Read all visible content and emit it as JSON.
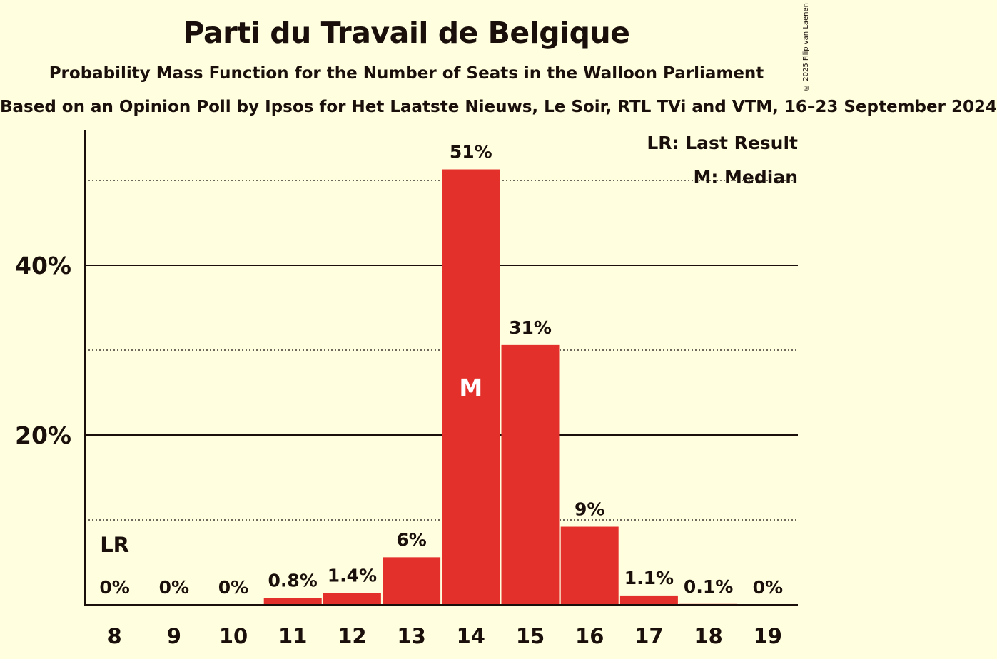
{
  "chart_data": {
    "type": "bar",
    "title": "Parti du Travail de Belgique",
    "subtitle": "Probability Mass Function for the Number of Seats in the Walloon Parliament",
    "source": "Based on an Opinion Poll by Ipsos for Het Laatste Nieuws, Le Soir, RTL TVi and VTM, 16–23 September 2024",
    "copyright": "© 2025 Filip van Laenen",
    "categories": [
      "8",
      "9",
      "10",
      "11",
      "12",
      "13",
      "14",
      "15",
      "16",
      "17",
      "18",
      "19"
    ],
    "values": [
      0,
      0,
      0,
      0.8,
      1.4,
      5.6,
      51.3,
      30.6,
      9.2,
      1.1,
      0.1,
      0
    ],
    "labels": [
      "0%",
      "0%",
      "0%",
      "0.8%",
      "1.4%",
      "6%",
      "51%",
      "31%",
      "9%",
      "1.1%",
      "0.1%",
      "0%"
    ],
    "ylim": [
      0,
      56
    ],
    "yticks": [
      {
        "value": 20,
        "label": "20%"
      },
      {
        "value": 40,
        "label": "40%"
      }
    ],
    "minor_gridlines": [
      10,
      30,
      50
    ],
    "last_result_category": "8",
    "median_category": "14",
    "last_result_marker": "LR",
    "median_marker": "M",
    "legend": [
      "LR: Last Result",
      "M: Median"
    ],
    "bar_color": "#e3302b"
  }
}
